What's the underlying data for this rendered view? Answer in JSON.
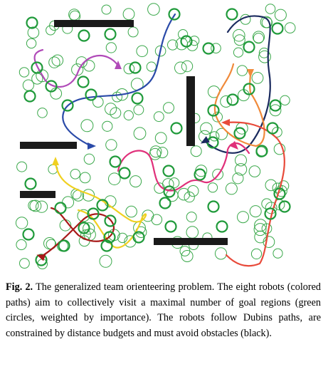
{
  "figure": {
    "caption_label": "Fig. 2.",
    "caption_text": "The generalized team orienteering problem. The eight robots (colored paths) aim to collectively visit a maximal number of goal regions (green circles, weighted by importance). The robots follow Dubins paths, are constrained by distance budgets and must avoid obstacles (black)."
  },
  "colors": {
    "goal_light": "#3aa84a",
    "goal_bold": "#1f9a3a",
    "obstacle": "#1a1a1a",
    "robot_paths": [
      "#2a4aa8",
      "#b04ab8",
      "#1a2a5e",
      "#f08a3a",
      "#e0307a",
      "#e84a3a",
      "#f0d020",
      "#a81818"
    ]
  }
}
